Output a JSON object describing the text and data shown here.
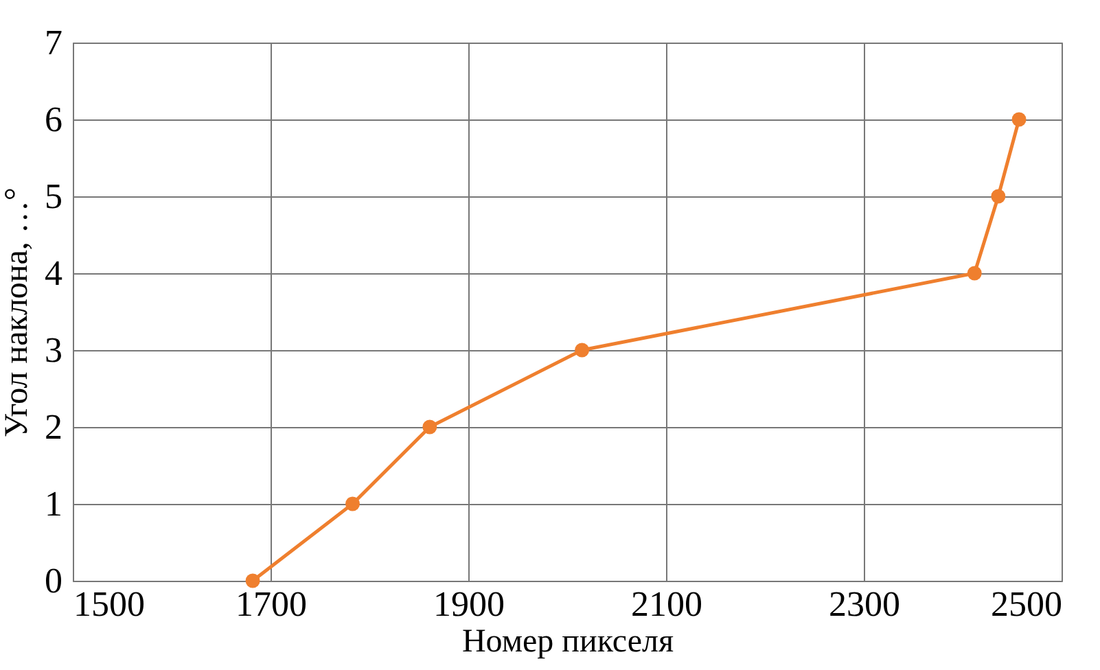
{
  "chart_data": {
    "type": "line",
    "xlabel": "Номер пикселя",
    "ylabel": "Угол наклона, …°",
    "x": [
      1682,
      1783,
      1861,
      2015,
      2412,
      2436,
      2457
    ],
    "series": [
      {
        "color": "#ef7f2e",
        "values": [
          0,
          1,
          2,
          3,
          4,
          5,
          6
        ]
      }
    ],
    "xlim": [
      1500,
      2500
    ],
    "xticks": [
      1500,
      1700,
      1900,
      2100,
      2300,
      2500
    ],
    "ylim": [
      0,
      7
    ],
    "yticks": [
      0,
      1,
      2,
      3,
      4,
      5,
      6,
      7
    ],
    "grid": true,
    "marker": "circle",
    "line_style": "solid",
    "legend": false
  }
}
